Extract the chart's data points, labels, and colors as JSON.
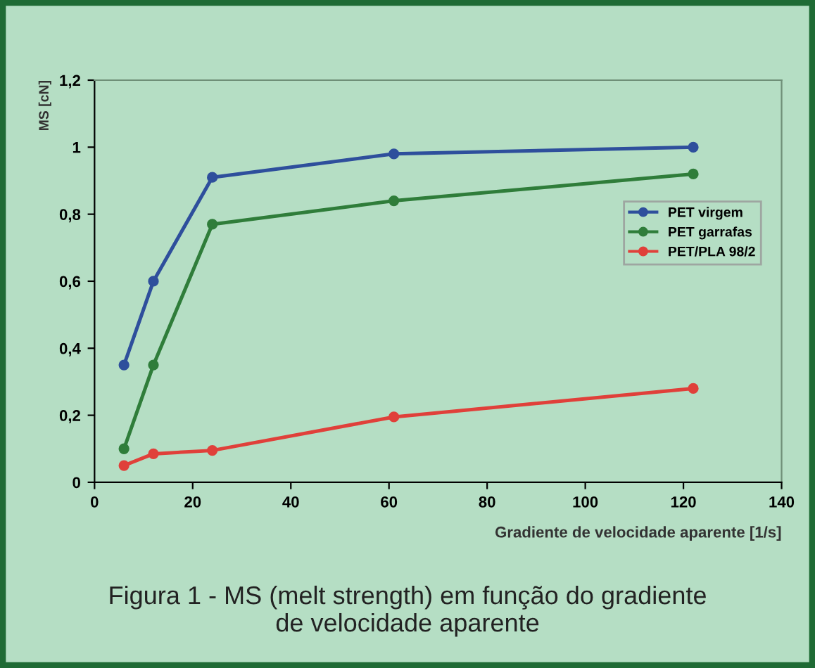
{
  "chart_data": {
    "type": "line",
    "xlabel": "Gradiente de velocidade aparente [1/s]",
    "ylabel": "MS [cN]",
    "x": [
      6,
      12,
      24,
      61,
      122
    ],
    "series": [
      {
        "name": "PET virgem",
        "color": "#2e4f9c",
        "values": [
          0.35,
          0.6,
          0.91,
          0.98,
          1.0
        ]
      },
      {
        "name": "PET garrafas",
        "color": "#2f7d3a",
        "values": [
          0.1,
          0.35,
          0.77,
          0.84,
          0.92
        ]
      },
      {
        "name": "PET/PLA 98/2",
        "color": "#e0403a",
        "values": [
          0.05,
          0.085,
          0.095,
          0.195,
          0.28
        ]
      }
    ],
    "xlim": [
      0,
      140
    ],
    "xticks": [
      0,
      20,
      40,
      60,
      80,
      100,
      120,
      140
    ],
    "ylim": [
      0,
      1.2
    ],
    "yticks": [
      0,
      {
        "value": 0.2,
        "label": "0,2"
      },
      {
        "value": 0.4,
        "label": "0,4"
      },
      {
        "value": 0.6,
        "label": "0,6"
      },
      {
        "value": 0.8,
        "label": "0,8"
      },
      1,
      {
        "value": 1.2,
        "label": "1,2"
      }
    ],
    "grid": false,
    "legend": "right",
    "marker": "circle",
    "line_style": "solid",
    "annotations": [
      "Figura 1 - MS (melt strength) em função do gradiente\nde velocidade aparente"
    ]
  }
}
